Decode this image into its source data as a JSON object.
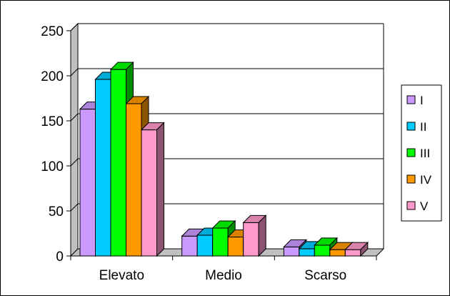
{
  "chart_data": {
    "type": "bar",
    "style": "3d-clustered",
    "categories": [
      "Elevato",
      "Medio",
      "Scarso"
    ],
    "series": [
      {
        "name": "I",
        "color": "#CC99FF",
        "values": [
          163,
          22,
          10
        ]
      },
      {
        "name": "II",
        "color": "#00CCFF",
        "values": [
          196,
          23,
          8
        ]
      },
      {
        "name": "III",
        "color": "#00FF00",
        "values": [
          207,
          31,
          12
        ]
      },
      {
        "name": "IV",
        "color": "#FF9900",
        "values": [
          169,
          21,
          7
        ]
      },
      {
        "name": "V",
        "color": "#FF99CC",
        "values": [
          140,
          37,
          7
        ]
      }
    ],
    "yticks": [
      0,
      50,
      100,
      150,
      200,
      250
    ],
    "ylim": [
      0,
      250
    ],
    "grid": true,
    "legend": "right"
  }
}
